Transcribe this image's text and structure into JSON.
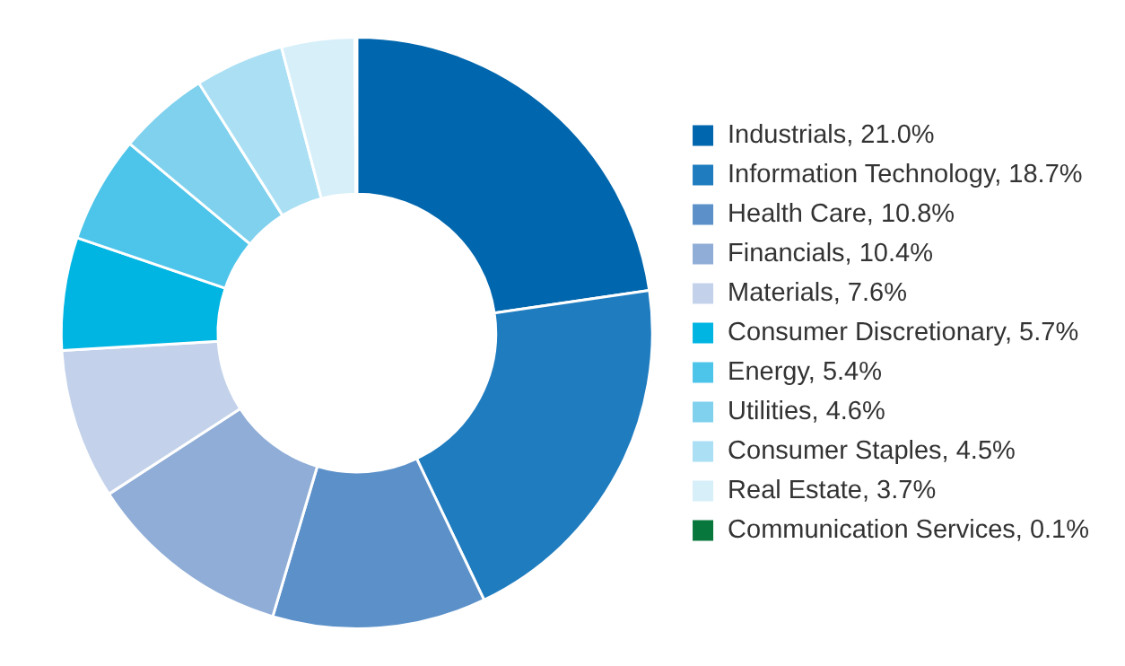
{
  "chart_data": {
    "type": "donut",
    "categories": [
      "Industrials",
      "Information Technology",
      "Health Care",
      "Financials",
      "Materials",
      "Consumer Discretionary",
      "Energy",
      "Utilities",
      "Consumer Staples",
      "Real Estate",
      "Communication Services"
    ],
    "values": [
      21.0,
      18.7,
      10.8,
      10.4,
      7.6,
      5.7,
      5.4,
      4.6,
      4.5,
      3.7,
      0.1
    ],
    "value_labels": [
      "21.0%",
      "18.7%",
      "10.8%",
      "10.4%",
      "7.6%",
      "5.7%",
      "5.4%",
      "4.6%",
      "4.5%",
      "3.7%",
      "0.1%"
    ],
    "colors": [
      "#0066ad",
      "#1f7cbf",
      "#5b90c9",
      "#8fadd6",
      "#c3d2ea",
      "#00b5e2",
      "#4dc4e9",
      "#7fd1ee",
      "#aadff4",
      "#d6eff9",
      "#08773c"
    ],
    "legend": "right"
  }
}
